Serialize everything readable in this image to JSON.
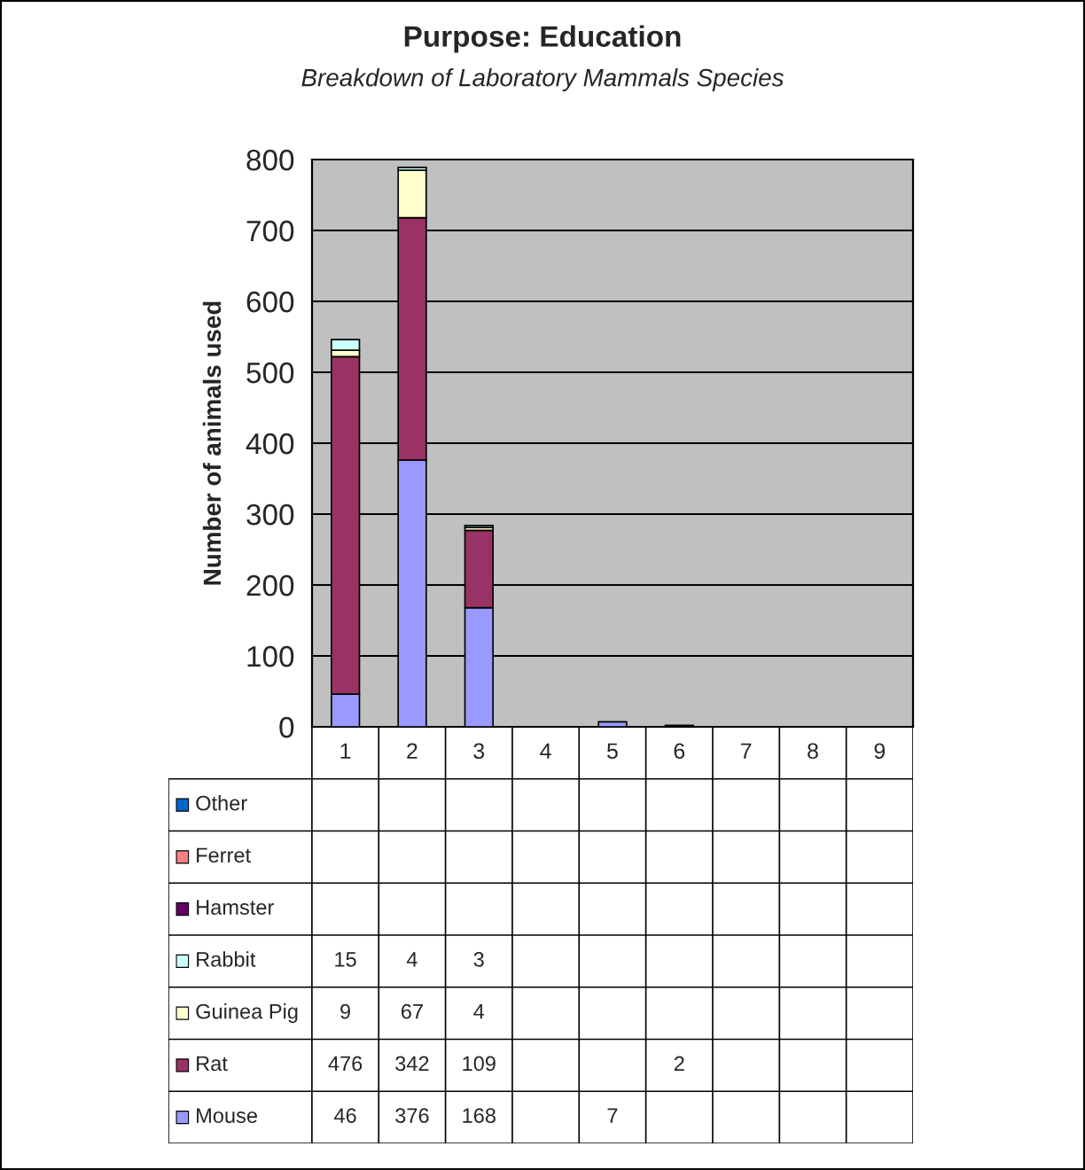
{
  "chart_data": {
    "type": "bar",
    "title": "Purpose: Education",
    "subtitle": "Breakdown of Laboratory Mammals Species",
    "ylabel": "Number of animals used",
    "categories": [
      "1",
      "2",
      "3",
      "4",
      "5",
      "6",
      "7",
      "8",
      "9"
    ],
    "stacked": true,
    "data_labels": true,
    "legend": "bottom",
    "grid": "y",
    "ylim": [
      0,
      800
    ],
    "yticks": [
      0,
      100,
      200,
      300,
      400,
      500,
      600,
      700,
      800
    ],
    "series": [
      {
        "name": "Mouse",
        "color": "#9999ff",
        "values": [
          46,
          376,
          168,
          null,
          7,
          null,
          null,
          null,
          null
        ]
      },
      {
        "name": "Rat",
        "color": "#993366",
        "values": [
          476,
          342,
          109,
          null,
          null,
          2,
          null,
          null,
          null
        ]
      },
      {
        "name": "Guinea Pig",
        "color": "#ffffcc",
        "values": [
          9,
          67,
          4,
          null,
          null,
          null,
          null,
          null,
          null
        ]
      },
      {
        "name": "Rabbit",
        "color": "#ccffff",
        "values": [
          15,
          4,
          3,
          null,
          null,
          null,
          null,
          null,
          null
        ]
      },
      {
        "name": "Hamster",
        "color": "#660066",
        "values": [
          null,
          null,
          null,
          null,
          null,
          null,
          null,
          null,
          null
        ]
      },
      {
        "name": "Ferret",
        "color": "#ff8080",
        "values": [
          null,
          null,
          null,
          null,
          null,
          null,
          null,
          null,
          null
        ]
      },
      {
        "name": "Other",
        "color": "#0066cc",
        "values": [
          null,
          null,
          null,
          null,
          null,
          null,
          null,
          null,
          null
        ]
      }
    ]
  }
}
